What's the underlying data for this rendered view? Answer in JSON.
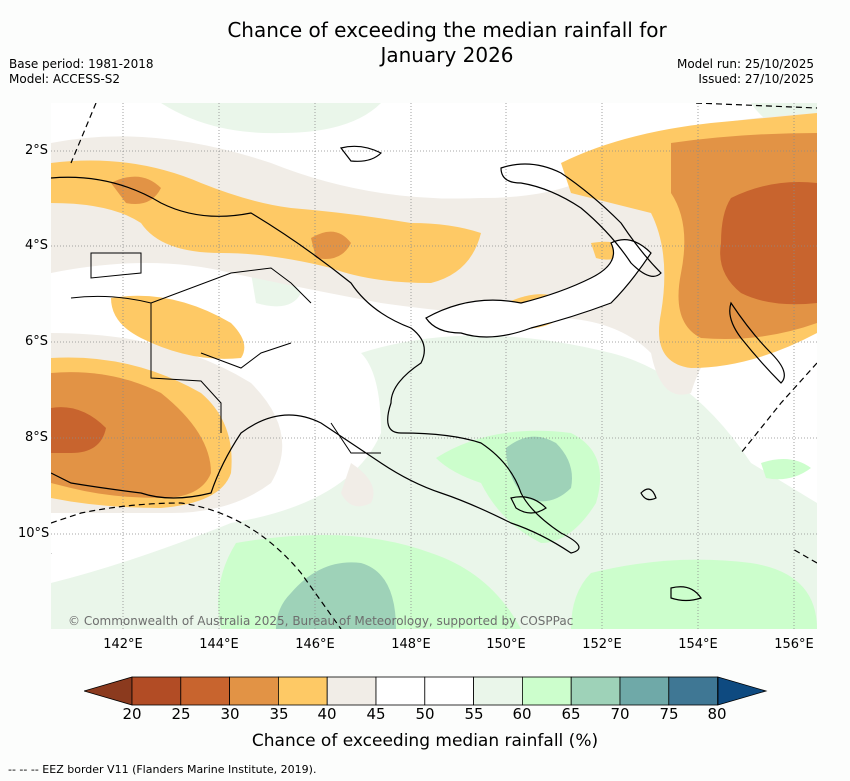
{
  "title_line1": "Chance of exceeding the median rainfall for",
  "title_line2": "January 2026",
  "base_period": "Base period: 1981-2018",
  "model": "Model: ACCESS-S2",
  "model_run": "Model run: 25/10/2025",
  "issued": "Issued: 27/10/2025",
  "lat_labels": [
    "2°S",
    "4°S",
    "6°S",
    "8°S",
    "10°S"
  ],
  "lon_labels": [
    "142°E",
    "144°E",
    "146°E",
    "148°E",
    "150°E",
    "152°E",
    "154°E",
    "156°E"
  ],
  "copyright": "© Commonwealth of Australia 2025, Bureau of Meteorology, supported by COSPPac",
  "colorbar": {
    "label": "Chance of exceeding median rainfall (%)",
    "ticks": [
      "20",
      "25",
      "30",
      "35",
      "40",
      "45",
      "50",
      "55",
      "60",
      "65",
      "70",
      "75",
      "80"
    ],
    "colors": {
      "below_20": "#8b3a1e",
      "c20_25": "#b24c25",
      "c25_30": "#c8642e",
      "c30_35": "#e29345",
      "c35_40": "#fec965",
      "c40_45": "#f1ede7",
      "c45_50": "#ffffff",
      "c50_55": "#ffffff",
      "c55_60": "#eaf6ea",
      "c60_65": "#ccfecc",
      "c65_70": "#9ed2b8",
      "c70_75": "#6fa9a8",
      "c75_80": "#3f7794",
      "above_80": "#0e4a80"
    }
  },
  "footnote": "-- -- -- EEZ border V11 (Flanders Marine Institute, 2019)."
}
